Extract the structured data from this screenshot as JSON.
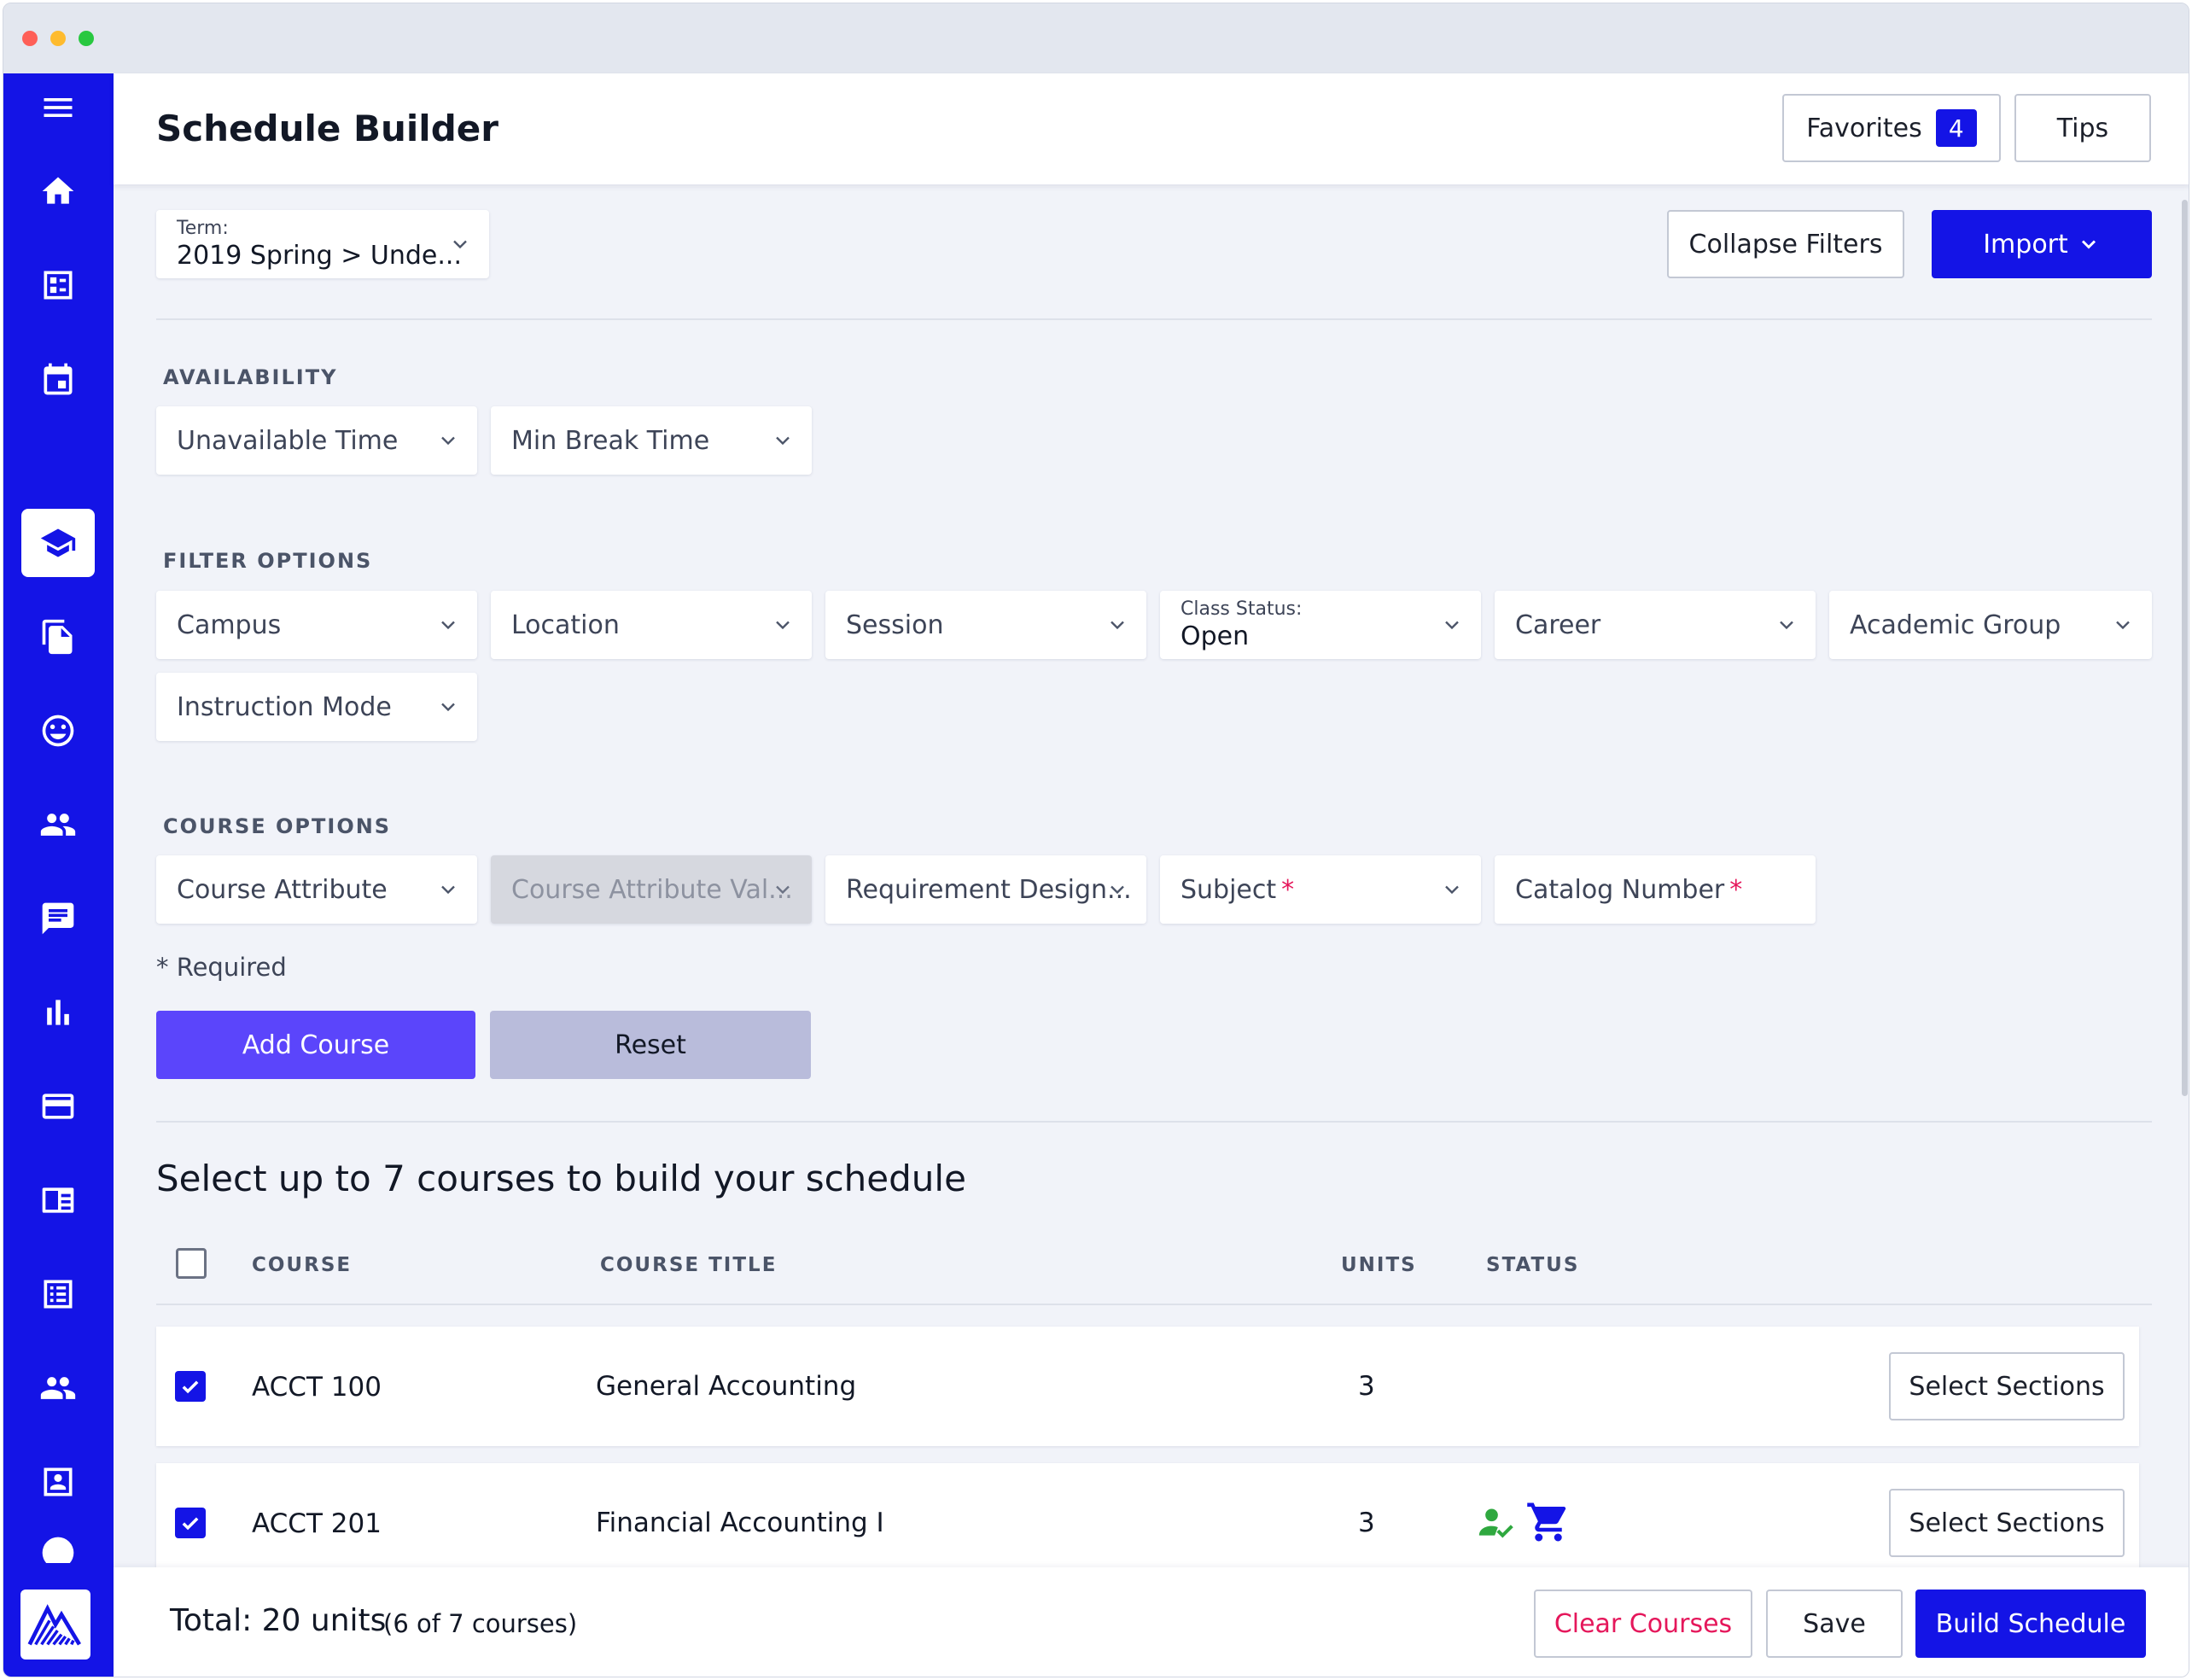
{
  "header": {
    "title": "Schedule Builder",
    "favorites_label": "Favorites",
    "favorites_count": "4",
    "tips_label": "Tips"
  },
  "filters_bar": {
    "term_label": "Term:",
    "term_value": "2019 Spring > Unde...",
    "collapse_label": "Collapse Filters",
    "import_label": "Import"
  },
  "availability": {
    "heading": "AVAILABILITY",
    "unavailable_time": "Unavailable Time",
    "min_break_time": "Min Break Time"
  },
  "filter_options": {
    "heading": "FILTER OPTIONS",
    "campus": "Campus",
    "location": "Location",
    "session": "Session",
    "class_status_label": "Class Status:",
    "class_status_value": "Open",
    "career": "Career",
    "academic_group": "Academic Group",
    "instruction_mode": "Instruction Mode"
  },
  "course_options": {
    "heading": "COURSE OPTIONS",
    "course_attribute": "Course Attribute",
    "course_attribute_value": "Course Attribute Val...",
    "requirement_designation": "Requirement Design...",
    "subject": "Subject",
    "catalog_number": "Catalog Number",
    "required_mark": "*",
    "required_note": "* Required",
    "add_course": "Add Course",
    "reset": "Reset"
  },
  "courses": {
    "heading": "Select up to 7 courses to build your schedule",
    "columns": {
      "course": "COURSE",
      "title": "COURSE TITLE",
      "units": "UNITS",
      "status": "STATUS"
    },
    "rows": [
      {
        "code": "ACCT 100",
        "title": "General Accounting",
        "units": "3",
        "action": "Select Sections"
      },
      {
        "code": "ACCT 201",
        "title": "Financial Accounting I",
        "units": "3",
        "action": "Select Sections"
      }
    ]
  },
  "footer": {
    "total": "Total: 20 units",
    "courses_count": "(6 of 7 courses)",
    "clear_label": "Clear Courses",
    "save_label": "Save",
    "build_label": "Build Schedule"
  },
  "colors": {
    "brand": "#1414e6",
    "add_course": "#5b45fb",
    "reset": "#b9bcdb",
    "danger": "#e5175b",
    "status_green": "#2fa83f"
  },
  "sidebar": {
    "icons": [
      "menu-icon",
      "home-icon",
      "dashboard-icon",
      "calendar-icon",
      "graduation-cap-icon",
      "documents-icon",
      "smiley-icon",
      "people-icon",
      "chat-icon",
      "bar-chart-icon",
      "credit-card-icon",
      "news-icon",
      "list-icon",
      "group-icon",
      "contact-card-icon",
      "info-icon"
    ]
  }
}
